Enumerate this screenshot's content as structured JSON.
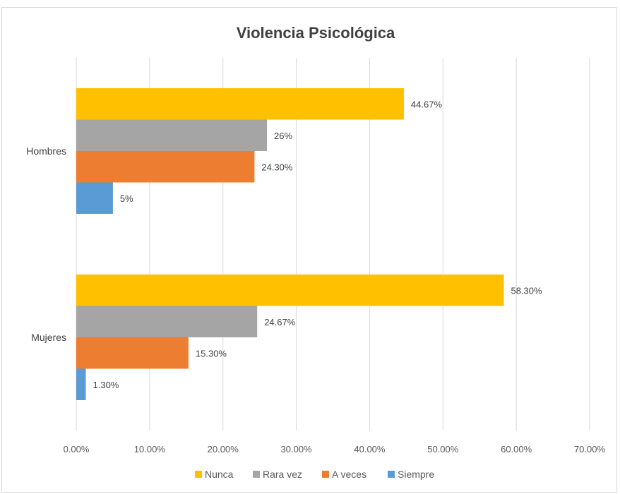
{
  "chart_data": {
    "type": "bar",
    "orientation": "horizontal",
    "title": "Violencia Psicológica",
    "categories": [
      "Hombres",
      "Mujeres"
    ],
    "series": [
      {
        "name": "Nunca",
        "color": "#ffc000",
        "values": [
          44.67,
          58.3
        ],
        "labels": [
          "44.67%",
          "58.30%"
        ]
      },
      {
        "name": "Rara vez",
        "color": "#a5a5a5",
        "values": [
          26,
          24.67
        ],
        "labels": [
          "26%",
          "24.67%"
        ]
      },
      {
        "name": "A veces",
        "color": "#ed7d31",
        "values": [
          24.3,
          15.3
        ],
        "labels": [
          "24.30%",
          "15.30%"
        ]
      },
      {
        "name": "Siempre",
        "color": "#5b9bd5",
        "values": [
          5,
          1.3
        ],
        "labels": [
          "5%",
          "1.30%"
        ]
      }
    ],
    "xlim": [
      0,
      70
    ],
    "xticks": [
      0,
      10,
      20,
      30,
      40,
      50,
      60,
      70
    ],
    "xtick_labels": [
      "0.00%",
      "10.00%",
      "20.00%",
      "30.00%",
      "40.00%",
      "50.00%",
      "60.00%",
      "70.00%"
    ],
    "grid": true,
    "legend_position": "bottom"
  }
}
